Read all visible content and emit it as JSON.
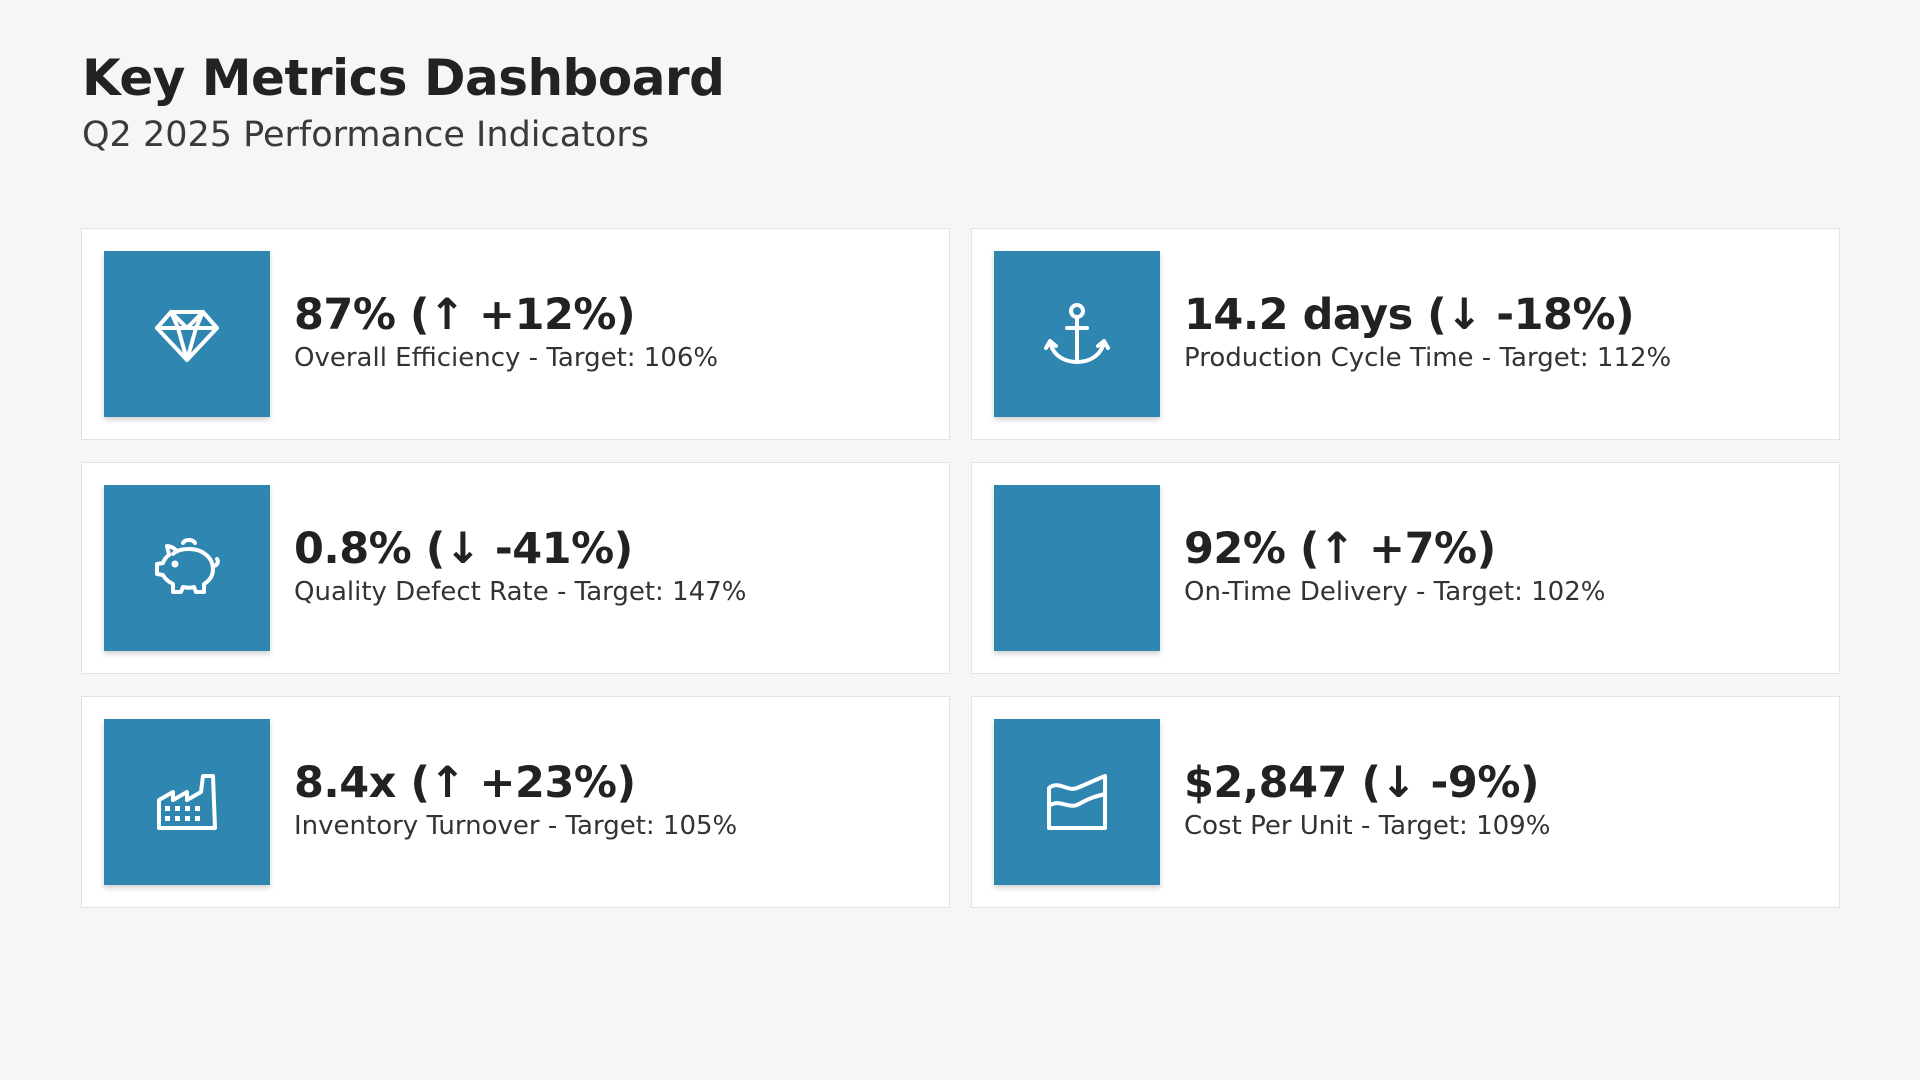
{
  "header": {
    "title": "Key Metrics Dashboard",
    "subtitle": "Q2 2025 Performance Indicators"
  },
  "theme": {
    "accent": "#2e86b1",
    "background": "#f6f6f6",
    "card": "#ffffff"
  },
  "cards": [
    {
      "icon": "diamond-icon",
      "metric": "87% (↑ +12%)",
      "label": "Overall Efficiency - Target: 106%"
    },
    {
      "icon": "anchor-icon",
      "metric": "14.2 days (↓ -18%)",
      "label": "Production Cycle Time - Target: 112%"
    },
    {
      "icon": "piggy-bank-icon",
      "metric": "0.8% (↓ -41%)",
      "label": "Quality Defect Rate - Target: 147%"
    },
    {
      "icon": "blank-icon",
      "metric": "92% (↑ +7%)",
      "label": "On-Time Delivery - Target: 102%"
    },
    {
      "icon": "factory-icon",
      "metric": "8.4x (↑ +23%)",
      "label": "Inventory Turnover - Target: 105%"
    },
    {
      "icon": "area-chart-icon",
      "metric": "$2,847 (↓ -9%)",
      "label": "Cost Per Unit - Target: 109%"
    }
  ]
}
